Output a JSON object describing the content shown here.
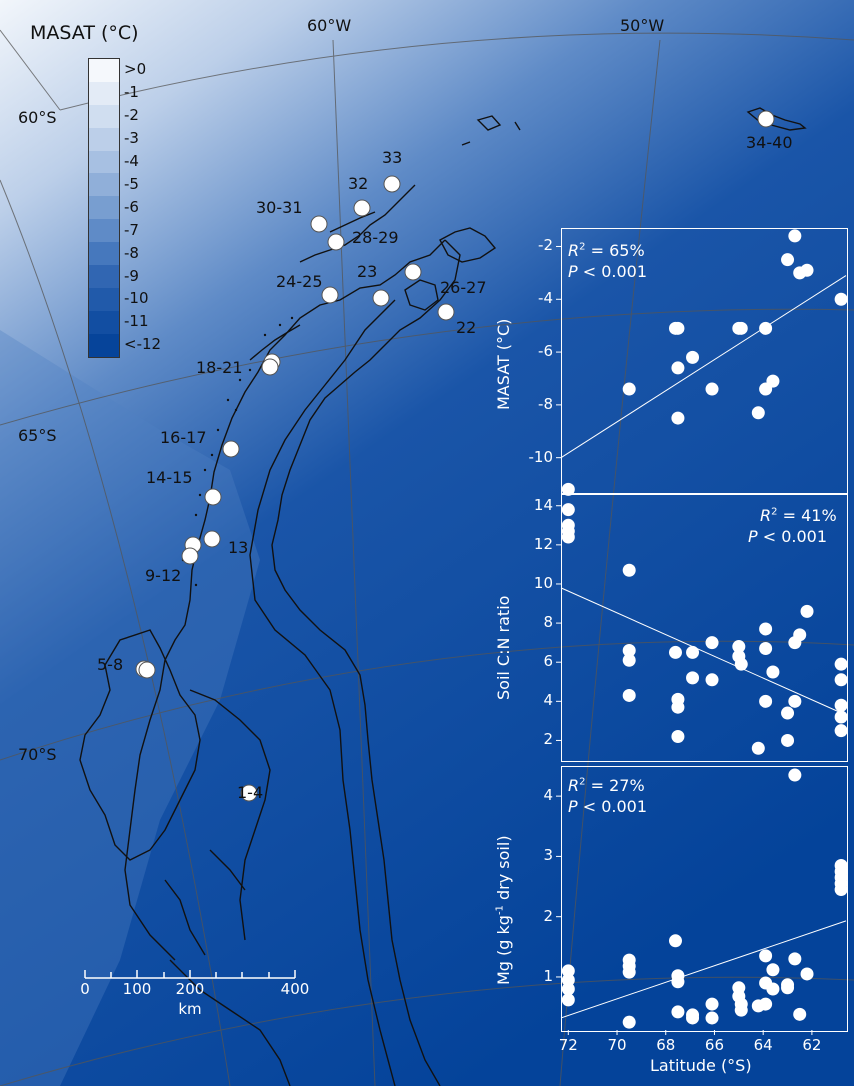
{
  "legend": {
    "title": "MASAT (°C)",
    "labels": [
      ">0",
      "-1",
      "-2",
      "-3",
      "-4",
      "-5",
      "-6",
      "-7",
      "-8",
      "-9",
      "-10",
      "-11",
      "<-12"
    ],
    "colors": [
      "#f5f8fc",
      "#e3ebf6",
      "#d0def0",
      "#bccfe9",
      "#a7c0e2",
      "#90afd9",
      "#789ed0",
      "#5f8bc7",
      "#4678bd",
      "#3166b2",
      "#215aaa",
      "#124ea2",
      "#06449a"
    ]
  },
  "map": {
    "longitude_labels": [
      "60°W",
      "50°W"
    ],
    "latitude_labels": [
      "60°S",
      "65°S",
      "70°S"
    ],
    "sites": [
      {
        "label": "1-4",
        "lat": 71.6,
        "lon": -67.4
      },
      {
        "label": "5-8",
        "lat": 69.7,
        "lon": -71.6
      },
      {
        "label": "9-12",
        "lat": 67.7,
        "lon": -68.5
      },
      {
        "label": "13",
        "lat": 67.6,
        "lon": -68.1
      },
      {
        "label": "14-15",
        "lat": 66.8,
        "lon": -67.4
      },
      {
        "label": "16-17",
        "lat": 65.8,
        "lon": -65.6
      },
      {
        "label": "18-21",
        "lat": 64.8,
        "lon": -64.0
      },
      {
        "label": "22",
        "lat": 63.6,
        "lon": -57.2
      },
      {
        "label": "23",
        "lat": 63.4,
        "lon": -59.4
      },
      {
        "label": "24-25",
        "lat": 63.4,
        "lon": -61.2
      },
      {
        "label": "26-27",
        "lat": 63.0,
        "lon": -57.8
      },
      {
        "label": "28-29",
        "lat": 62.4,
        "lon": -60.1
      },
      {
        "label": "30-31",
        "lat": 62.2,
        "lon": -60.8
      },
      {
        "label": "32",
        "lat": 62.0,
        "lon": -59.6
      },
      {
        "label": "33",
        "lat": 61.7,
        "lon": -58.2
      },
      {
        "label": "34-40",
        "lat": 60.7,
        "lon": -45.6
      }
    ],
    "scale_bar": {
      "ticks": [
        "0",
        "100",
        "200",
        "400"
      ],
      "unit": "km"
    }
  },
  "chart_data": [
    {
      "type": "scatter",
      "ylabel": "MASAT (°C)",
      "stat_r2": "R",
      "stat_r2_value": " = 65%",
      "stat_p": "P",
      "stat_p_value": " < 0.001",
      "xlim": [
        72.3,
        60.6
      ],
      "ylim": [
        -11.3,
        -1.3
      ],
      "yticks": [
        "-2",
        "-4",
        "-6",
        "-8",
        "-10"
      ],
      "ytick_values": [
        -2,
        -4,
        -6,
        -8,
        -10
      ],
      "fit": [
        [
          72.3,
          -10.0
        ],
        [
          60.6,
          -3.1
        ]
      ],
      "points": [
        [
          72.0,
          -11.2
        ],
        [
          69.5,
          -7.4
        ],
        [
          67.6,
          -5.1
        ],
        [
          67.5,
          -5.1
        ],
        [
          67.5,
          -6.6
        ],
        [
          67.5,
          -8.5
        ],
        [
          66.9,
          -6.2
        ],
        [
          66.1,
          -7.4
        ],
        [
          65.0,
          -5.1
        ],
        [
          64.9,
          -5.1
        ],
        [
          64.2,
          -8.3
        ],
        [
          63.9,
          -5.1
        ],
        [
          63.9,
          -7.4
        ],
        [
          63.6,
          -7.1
        ],
        [
          63.0,
          -2.5
        ],
        [
          62.7,
          -1.6
        ],
        [
          62.5,
          -3.0
        ],
        [
          62.2,
          -2.9
        ],
        [
          60.8,
          -4.0
        ]
      ]
    },
    {
      "type": "scatter",
      "ylabel": "Soil C:N ratio",
      "stat_r2": "R",
      "stat_r2_value": " = 41%",
      "stat_p": "P",
      "stat_p_value": " < 0.001",
      "xlim": [
        72.3,
        60.6
      ],
      "ylim": [
        1.0,
        14.6
      ],
      "yticks": [
        "14",
        "12",
        "10",
        "8",
        "6",
        "4",
        "2"
      ],
      "ytick_values": [
        14,
        12,
        10,
        8,
        6,
        4,
        2
      ],
      "fit": [
        [
          72.3,
          9.8
        ],
        [
          60.6,
          3.3
        ]
      ],
      "points": [
        [
          72.0,
          13.8
        ],
        [
          72.0,
          13.0
        ],
        [
          72.0,
          12.7
        ],
        [
          72.0,
          12.4
        ],
        [
          69.5,
          10.7
        ],
        [
          69.5,
          6.6
        ],
        [
          69.5,
          6.1
        ],
        [
          69.5,
          4.3
        ],
        [
          67.6,
          6.5
        ],
        [
          67.5,
          4.1
        ],
        [
          67.5,
          3.7
        ],
        [
          67.5,
          2.2
        ],
        [
          66.9,
          6.5
        ],
        [
          66.9,
          5.2
        ],
        [
          66.1,
          7.0
        ],
        [
          66.1,
          5.1
        ],
        [
          65.0,
          6.8
        ],
        [
          65.0,
          6.3
        ],
        [
          64.9,
          5.9
        ],
        [
          64.2,
          1.6
        ],
        [
          63.9,
          7.7
        ],
        [
          63.9,
          6.7
        ],
        [
          63.9,
          4.0
        ],
        [
          63.6,
          5.5
        ],
        [
          63.0,
          2.0
        ],
        [
          63.0,
          3.4
        ],
        [
          62.7,
          7.0
        ],
        [
          62.7,
          4.0
        ],
        [
          62.5,
          7.4
        ],
        [
          62.2,
          8.6
        ],
        [
          60.8,
          5.9
        ],
        [
          60.8,
          5.1
        ],
        [
          60.8,
          3.8
        ],
        [
          60.8,
          3.2
        ],
        [
          60.8,
          2.5
        ]
      ]
    },
    {
      "type": "scatter",
      "ylabel": "Mg (g kg-1 dry soil)",
      "ylabel_main": "Mg (g kg",
      "ylabel_sup": "-1",
      "ylabel_tail": " dry soil)",
      "xlabel": "Latitude (°S)",
      "stat_r2": "R",
      "stat_r2_value": " = 27%",
      "stat_p": "P",
      "stat_p_value": " < 0.001",
      "xlim": [
        72.3,
        60.6
      ],
      "ylim": [
        0.12,
        4.5
      ],
      "xticks": [
        "72",
        "70",
        "68",
        "66",
        "64",
        "62"
      ],
      "xtick_values": [
        72,
        70,
        68,
        66,
        64,
        62
      ],
      "yticks": [
        "4",
        "3",
        "2",
        "1"
      ],
      "ytick_values": [
        4,
        3,
        2,
        1
      ],
      "fit": [
        [
          72.3,
          0.32
        ],
        [
          60.6,
          1.93
        ]
      ],
      "points": [
        [
          72.0,
          1.1
        ],
        [
          72.0,
          0.95
        ],
        [
          72.0,
          0.8
        ],
        [
          72.0,
          0.62
        ],
        [
          69.5,
          1.28
        ],
        [
          69.5,
          1.18
        ],
        [
          69.5,
          1.08
        ],
        [
          69.5,
          0.25
        ],
        [
          67.6,
          1.6
        ],
        [
          67.5,
          1.02
        ],
        [
          67.5,
          0.92
        ],
        [
          67.5,
          0.42
        ],
        [
          66.9,
          0.37
        ],
        [
          66.9,
          0.32
        ],
        [
          66.1,
          0.55
        ],
        [
          66.1,
          0.32
        ],
        [
          65.0,
          0.82
        ],
        [
          65.0,
          0.68
        ],
        [
          64.9,
          0.55
        ],
        [
          64.9,
          0.45
        ],
        [
          64.2,
          0.52
        ],
        [
          63.9,
          1.35
        ],
        [
          63.9,
          0.9
        ],
        [
          63.9,
          0.55
        ],
        [
          63.6,
          1.12
        ],
        [
          63.6,
          0.8
        ],
        [
          63.0,
          0.87
        ],
        [
          63.0,
          0.82
        ],
        [
          62.7,
          4.35
        ],
        [
          62.7,
          1.3
        ],
        [
          62.5,
          0.38
        ],
        [
          62.2,
          1.05
        ],
        [
          60.8,
          2.85
        ],
        [
          60.8,
          2.75
        ],
        [
          60.8,
          2.65
        ],
        [
          60.8,
          2.55
        ],
        [
          60.8,
          2.45
        ]
      ]
    }
  ]
}
